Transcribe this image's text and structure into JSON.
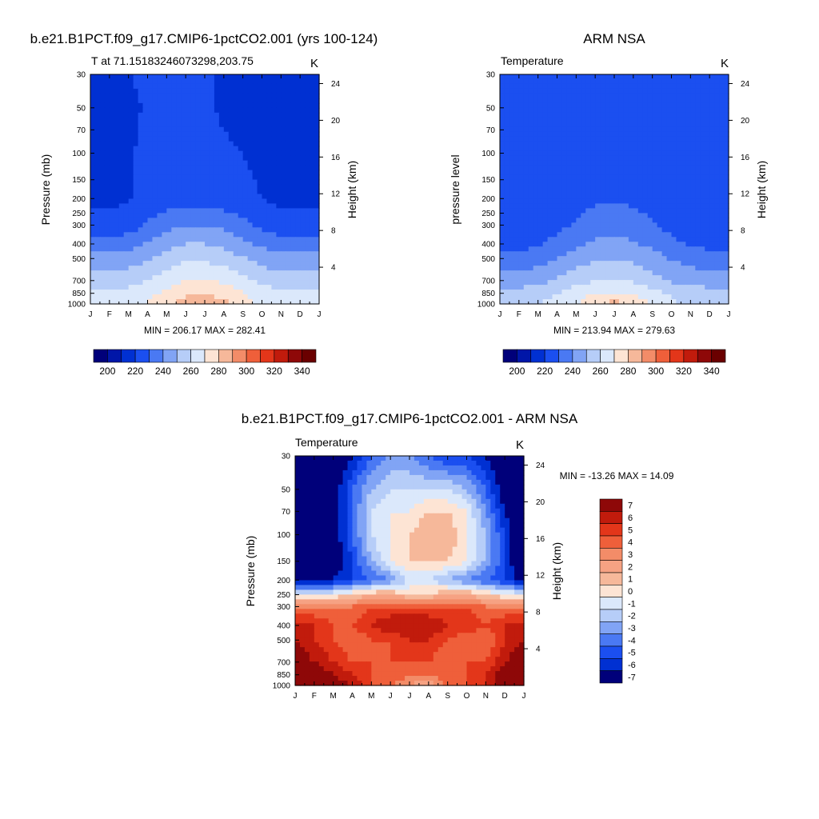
{
  "chart_data": [
    {
      "type": "heatmap",
      "title": "b.e21.B1PCT.f09_g17.CMIP6-1pctCO2.001 (yrs 100-124)",
      "subtitle": "T at 71.15183246073298,203.75",
      "units": "K",
      "ylabel": "Pressure (mb)",
      "ylabel_right": "Height (km)",
      "x_ticks": [
        "J",
        "F",
        "M",
        "A",
        "M",
        "J",
        "J",
        "A",
        "S",
        "O",
        "N",
        "D",
        "J"
      ],
      "y_ticks": [
        "30",
        "50",
        "70",
        "100",
        "150",
        "200",
        "250",
        "300",
        "400",
        "500",
        "700",
        "850",
        "1000"
      ],
      "y_ticks_right": [
        "24",
        "20",
        "16",
        "12",
        "8",
        "4"
      ],
      "stats": "MIN = 206.17 MAX = 282.41",
      "colorbar_labels": [
        "200",
        "220",
        "240",
        "260",
        "280",
        "300",
        "320",
        "340"
      ],
      "colorbar_colors": [
        "#00007a",
        "#0016a8",
        "#0030d2",
        "#1b4ff0",
        "#4a79f3",
        "#81a4f5",
        "#b6cdf8",
        "#dbe8fb",
        "#fde4d4",
        "#f6b89a",
        "#f38c68",
        "#ef5f3a",
        "#e3361a",
        "#c11b0c",
        "#8e0808",
        "#6a0000"
      ],
      "x_months": [
        1,
        2,
        3,
        4,
        5,
        6,
        7,
        8,
        9,
        10,
        11,
        12,
        13
      ],
      "levels_mb": [
        30,
        50,
        100,
        200,
        300,
        400,
        500,
        700,
        850,
        1000
      ],
      "values": [
        [
          212,
          212,
          214,
          218,
          219,
          218,
          216,
          214,
          212,
          211,
          209,
          210,
          212
        ],
        [
          211,
          211,
          213,
          216,
          218,
          217,
          216,
          214,
          213,
          211,
          208,
          208,
          211
        ],
        [
          212,
          212,
          214,
          217,
          218,
          218,
          217,
          216,
          215,
          213,
          212,
          211,
          212
        ],
        [
          213,
          213,
          214,
          218,
          220,
          220,
          219,
          218,
          217,
          215,
          213,
          213,
          213
        ],
        [
          218,
          218,
          220,
          226,
          232,
          235,
          235,
          233,
          228,
          223,
          219,
          219,
          218
        ],
        [
          229,
          229,
          231,
          236,
          241,
          245,
          245,
          242,
          238,
          233,
          229,
          229,
          229
        ],
        [
          238,
          238,
          240,
          244,
          249,
          253,
          253,
          250,
          246,
          241,
          238,
          238,
          238
        ],
        [
          249,
          249,
          251,
          255,
          260,
          265,
          266,
          263,
          258,
          253,
          249,
          249,
          249
        ],
        [
          256,
          256,
          258,
          262,
          268,
          273,
          274,
          271,
          265,
          260,
          256,
          256,
          256
        ],
        [
          259,
          259,
          261,
          266,
          272,
          281,
          282,
          278,
          270,
          263,
          259,
          259,
          259
        ]
      ]
    },
    {
      "type": "heatmap",
      "title": "ARM NSA",
      "subtitle": "Temperature",
      "units": "K",
      "ylabel": "pressure level",
      "ylabel_right": "Height (km)",
      "x_ticks": [
        "J",
        "F",
        "M",
        "A",
        "M",
        "J",
        "J",
        "A",
        "S",
        "O",
        "N",
        "D",
        "J"
      ],
      "y_ticks": [
        "30",
        "50",
        "70",
        "100",
        "150",
        "200",
        "250",
        "300",
        "400",
        "500",
        "700",
        "850",
        "1000"
      ],
      "y_ticks_right": [
        "24",
        "20",
        "16",
        "12",
        "8",
        "4"
      ],
      "stats": "MIN = 213.94 MAX = 279.63",
      "colorbar_labels": [
        "200",
        "220",
        "240",
        "260",
        "280",
        "300",
        "320",
        "340"
      ],
      "colorbar_colors": [
        "#00007a",
        "#0016a8",
        "#0030d2",
        "#1b4ff0",
        "#4a79f3",
        "#81a4f5",
        "#b6cdf8",
        "#dbe8fb",
        "#fde4d4",
        "#f6b89a",
        "#f38c68",
        "#ef5f3a",
        "#e3361a",
        "#c11b0c",
        "#8e0808",
        "#6a0000"
      ],
      "x_months": [
        1,
        2,
        3,
        4,
        5,
        6,
        7,
        8,
        9,
        10,
        11,
        12,
        13
      ],
      "levels_mb": [
        30,
        50,
        100,
        200,
        300,
        400,
        500,
        700,
        850,
        1000
      ],
      "values": [
        [
          219,
          219,
          219,
          220,
          222,
          223,
          224,
          223,
          222,
          221,
          220,
          219,
          219
        ],
        [
          219,
          219,
          219,
          221,
          222,
          223,
          224,
          223,
          222,
          221,
          219,
          219,
          219
        ],
        [
          218,
          218,
          219,
          221,
          222,
          223,
          224,
          223,
          222,
          220,
          218,
          218,
          218
        ],
        [
          216,
          216,
          217,
          220,
          222,
          223,
          224,
          223,
          221,
          218,
          216,
          216,
          216
        ],
        [
          215,
          215,
          218,
          222,
          226,
          230,
          231,
          229,
          226,
          221,
          217,
          216,
          215
        ],
        [
          221,
          221,
          224,
          229,
          233,
          237,
          238,
          236,
          233,
          228,
          224,
          222,
          221
        ],
        [
          229,
          229,
          231,
          235,
          240,
          244,
          245,
          243,
          239,
          234,
          231,
          230,
          229
        ],
        [
          240,
          240,
          242,
          246,
          251,
          255,
          256,
          254,
          249,
          244,
          241,
          240,
          240
        ],
        [
          249,
          249,
          251,
          255,
          260,
          265,
          266,
          263,
          258,
          253,
          250,
          249,
          249
        ],
        [
          253,
          253,
          255,
          259,
          265,
          275,
          279,
          274,
          264,
          257,
          254,
          253,
          253
        ]
      ]
    },
    {
      "type": "heatmap",
      "title": "b.e21.B1PCT.f09_g17.CMIP6-1pctCO2.001 - ARM NSA",
      "subtitle": "Temperature",
      "units": "K",
      "ylabel": "Pressure (mb)",
      "ylabel_right": "Height (km)",
      "x_ticks": [
        "J",
        "F",
        "M",
        "A",
        "M",
        "J",
        "J",
        "A",
        "S",
        "O",
        "N",
        "D",
        "J"
      ],
      "y_ticks": [
        "30",
        "50",
        "70",
        "100",
        "150",
        "200",
        "250",
        "300",
        "400",
        "500",
        "700",
        "850",
        "1000"
      ],
      "y_ticks_right": [
        "24",
        "20",
        "16",
        "12",
        "8",
        "4"
      ],
      "stats": "MIN = -13.26 MAX =  14.09",
      "colorbar_labels": [
        "7",
        "6",
        "5",
        "4",
        "3",
        "2",
        "1",
        "0",
        "-1",
        "-2",
        "-3",
        "-4",
        "-5",
        "-6",
        "-7"
      ],
      "colorbar_colors": [
        "#8e0808",
        "#c11b0c",
        "#e3361a",
        "#ef5f3a",
        "#f38c68",
        "#f6a283",
        "#f6b89a",
        "#fde4d4",
        "#dbe8fb",
        "#b6cdf8",
        "#81a4f5",
        "#4a79f3",
        "#1b4ff0",
        "#0030d2",
        "#00007a"
      ],
      "x_months": [
        1,
        2,
        3,
        4,
        5,
        6,
        7,
        8,
        9,
        10,
        11,
        12,
        13
      ],
      "levels_mb": [
        30,
        50,
        70,
        100,
        150,
        200,
        250,
        300,
        400,
        500,
        700,
        850,
        1000
      ],
      "values": [
        [
          -9,
          -9,
          -9,
          -7,
          -5,
          -4,
          -4,
          -5,
          -6,
          -6,
          -7,
          -9,
          -9
        ],
        [
          -9,
          -9,
          -8,
          -5,
          -3,
          -2,
          -2,
          -2,
          -2,
          -3,
          -5,
          -8,
          -9
        ],
        [
          -9,
          -9,
          -8,
          -5,
          -2,
          -1,
          -1,
          0,
          0,
          -1,
          -4,
          -7,
          -9
        ],
        [
          -9,
          -9,
          -8,
          -5,
          -2,
          -1,
          0,
          1,
          1,
          -1,
          -3,
          -6,
          -9
        ],
        [
          -9,
          -9,
          -8,
          -6,
          -3,
          -1,
          0,
          0,
          0,
          -1,
          -3,
          -6,
          -9
        ],
        [
          -8,
          -8,
          -7,
          -6,
          -5,
          -4,
          -2,
          -2,
          -3,
          -4,
          -5,
          -6,
          -8
        ],
        [
          -1,
          -1,
          -1,
          0,
          1,
          1,
          0,
          0,
          1,
          1,
          0,
          -1,
          -1
        ],
        [
          3,
          3,
          3,
          3,
          4,
          4,
          4,
          4,
          4,
          4,
          3,
          3,
          3
        ],
        [
          5,
          5,
          4,
          4,
          5,
          6,
          6,
          6,
          5,
          5,
          4,
          5,
          5
        ],
        [
          6,
          5,
          4,
          3,
          4,
          4,
          5,
          5,
          4,
          3,
          3,
          5,
          6
        ],
        [
          7,
          6,
          5,
          4,
          4,
          4,
          4,
          4,
          3,
          4,
          4,
          6,
          7
        ],
        [
          8,
          7,
          6,
          5,
          4,
          4,
          3,
          3,
          4,
          4,
          5,
          7,
          8
        ],
        [
          8,
          8,
          7,
          6,
          4,
          3,
          2,
          1,
          3,
          4,
          5,
          7,
          8
        ]
      ]
    }
  ]
}
